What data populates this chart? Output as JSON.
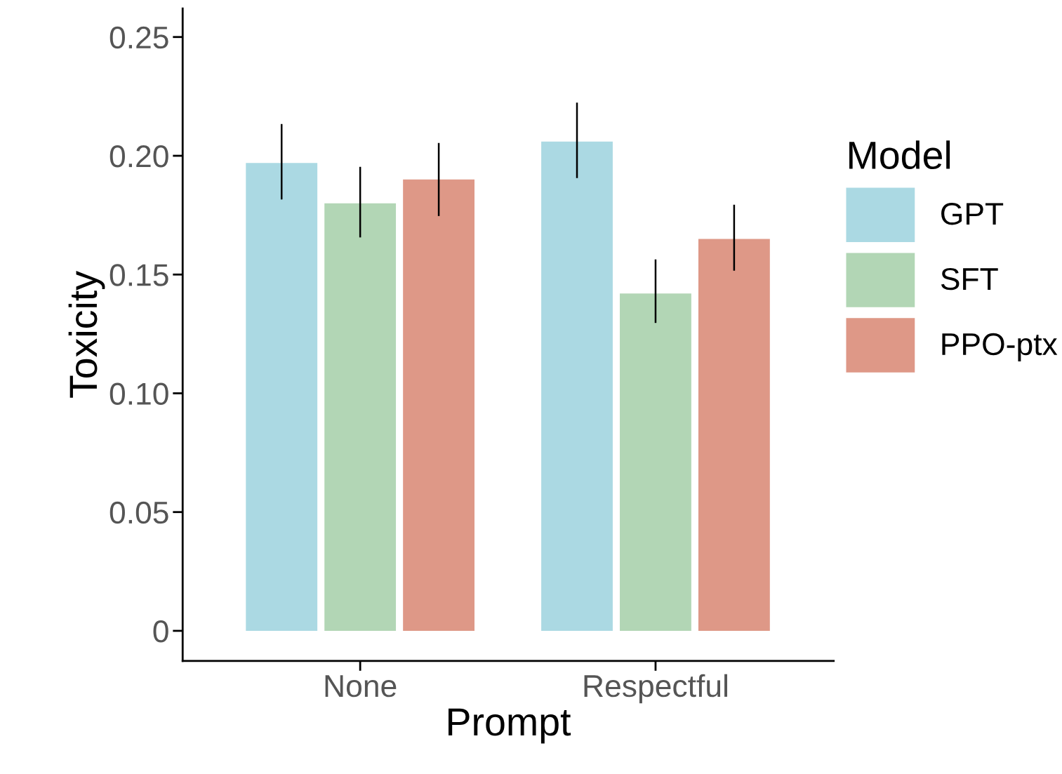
{
  "chart_data": {
    "type": "bar",
    "xlabel": "Prompt",
    "ylabel": "Toxicity",
    "legend_title": "Model",
    "legend": "right",
    "categories": [
      "None",
      "Respectful"
    ],
    "series": [
      {
        "name": "GPT",
        "color": "#abd9e3",
        "values": [
          0.197,
          0.206
        ],
        "errors": [
          [
            0.182,
            0.213
          ],
          [
            0.191,
            0.222
          ]
        ]
      },
      {
        "name": "SFT",
        "color": "#b2d6b5",
        "values": [
          0.18,
          0.142
        ],
        "errors": [
          [
            0.166,
            0.195
          ],
          [
            0.13,
            0.156
          ]
        ]
      },
      {
        "name": "PPO-ptx",
        "color": "#de9887",
        "values": [
          0.19,
          0.165
        ],
        "errors": [
          [
            0.175,
            0.205
          ],
          [
            0.152,
            0.179
          ]
        ]
      }
    ],
    "ylim": [
      -0.0127,
      0.262
    ],
    "yticks": [
      {
        "value": 0,
        "label": "0"
      },
      {
        "value": 0.05,
        "label": "0.05"
      },
      {
        "value": 0.1,
        "label": "0.10"
      },
      {
        "value": 0.15,
        "label": "0.15"
      },
      {
        "value": 0.2,
        "label": "0.20"
      },
      {
        "value": 0.25,
        "label": "0.25"
      }
    ],
    "grid": false
  }
}
